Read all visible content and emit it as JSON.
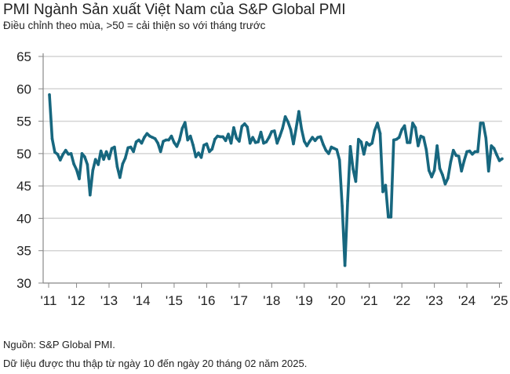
{
  "chart_data": {
    "type": "line",
    "title": "PMI Ngành Sản xuất Việt Nam của S&P Global PMI",
    "subtitle": "Điều chỉnh theo mùa, >50 = cải thiện so với tháng trước",
    "xlabel": "",
    "ylabel": "",
    "ylim": [
      30,
      65
    ],
    "yticks": [
      "65",
      "60",
      "55",
      "50",
      "45",
      "40",
      "35",
      "30"
    ],
    "xticks": [
      "'11",
      "'12",
      "'13",
      "'14",
      "'15",
      "'16",
      "'17",
      "'18",
      "'19",
      "'20",
      "'21",
      "'22",
      "'23",
      "'24",
      "'25"
    ],
    "grid": true,
    "start": "2011-03",
    "end": "2025-02",
    "line_color": "#17677f",
    "values": [
      59.1,
      52.3,
      50.2,
      49.9,
      49.0,
      49.9,
      50.5,
      49.9,
      50.0,
      48.4,
      47.5,
      46.1,
      50.0,
      49.5,
      48.3,
      43.6,
      47.4,
      49.1,
      48.3,
      50.4,
      49.1,
      50.3,
      49.2,
      50.8,
      51.0,
      48.0,
      46.3,
      48.4,
      49.3,
      50.9,
      51.0,
      50.3,
      51.8,
      52.1,
      51.6,
      52.5,
      53.1,
      52.7,
      52.5,
      52.3,
      51.6,
      50.3,
      51.9,
      52.1,
      52.1,
      52.7,
      51.7,
      51.1,
      52.1,
      53.9,
      54.8,
      52.1,
      52.7,
      51.3,
      49.5,
      50.1,
      49.4,
      51.3,
      51.5,
      50.3,
      50.7,
      52.2,
      52.7,
      52.6,
      52.6,
      52.0,
      53.0,
      51.6,
      54.0,
      52.4,
      51.9,
      54.2,
      54.6,
      54.1,
      51.6,
      52.5,
      51.7,
      51.8,
      53.3,
      51.6,
      51.8,
      52.5,
      53.4,
      53.5,
      51.6,
      52.7,
      53.9,
      55.7,
      54.9,
      53.7,
      51.5,
      53.9,
      56.5,
      53.8,
      51.9,
      51.2,
      51.9,
      52.5,
      52.0,
      52.5,
      52.6,
      51.4,
      50.5,
      50.0,
      51.0,
      50.8,
      50.6,
      49.0,
      41.9,
      32.7,
      42.7,
      51.1,
      47.6,
      45.7,
      52.2,
      51.8,
      49.9,
      51.7,
      51.3,
      51.6,
      53.6,
      54.7,
      53.1,
      44.1,
      45.1,
      40.2,
      40.2,
      52.1,
      52.2,
      52.5,
      53.7,
      54.3,
      51.7,
      51.7,
      54.7,
      54.0,
      51.2,
      52.7,
      52.5,
      50.6,
      47.4,
      46.4,
      47.4,
      51.2,
      47.7,
      46.7,
      45.3,
      46.2,
      48.7,
      50.5,
      49.7,
      49.6,
      47.3,
      48.9,
      50.3,
      50.4,
      49.9,
      50.3,
      50.3,
      54.7,
      54.7,
      52.4,
      47.3,
      51.2,
      50.8,
      49.8,
      48.9,
      49.2
    ]
  },
  "footer": {
    "source": "Nguồn: S&P Global PMI.",
    "note": "Dữ liệu được thu thập từ ngày 10 đến ngày 20 tháng 02 năm 2025."
  }
}
